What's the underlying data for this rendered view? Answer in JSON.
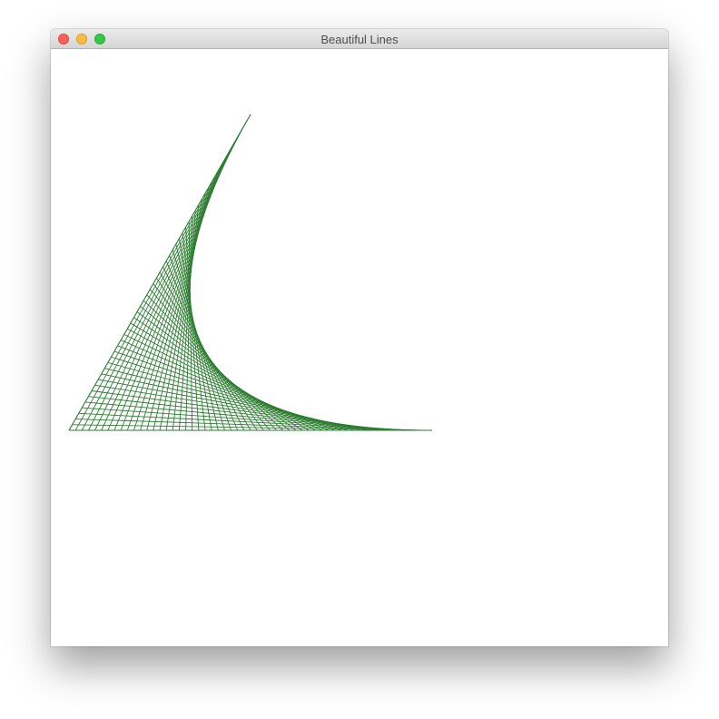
{
  "window": {
    "title": "Beautiful Lines"
  },
  "controls": [
    "close",
    "minimize",
    "zoom"
  ],
  "drawing": {
    "line_color": "#2e7d32",
    "line_count": 56,
    "shape": "line-envelope curve"
  },
  "colors": {
    "titlebar": "#dcdcdc",
    "close": "#fc605b",
    "minimize": "#fdbc40",
    "zoom": "#34c84a"
  }
}
